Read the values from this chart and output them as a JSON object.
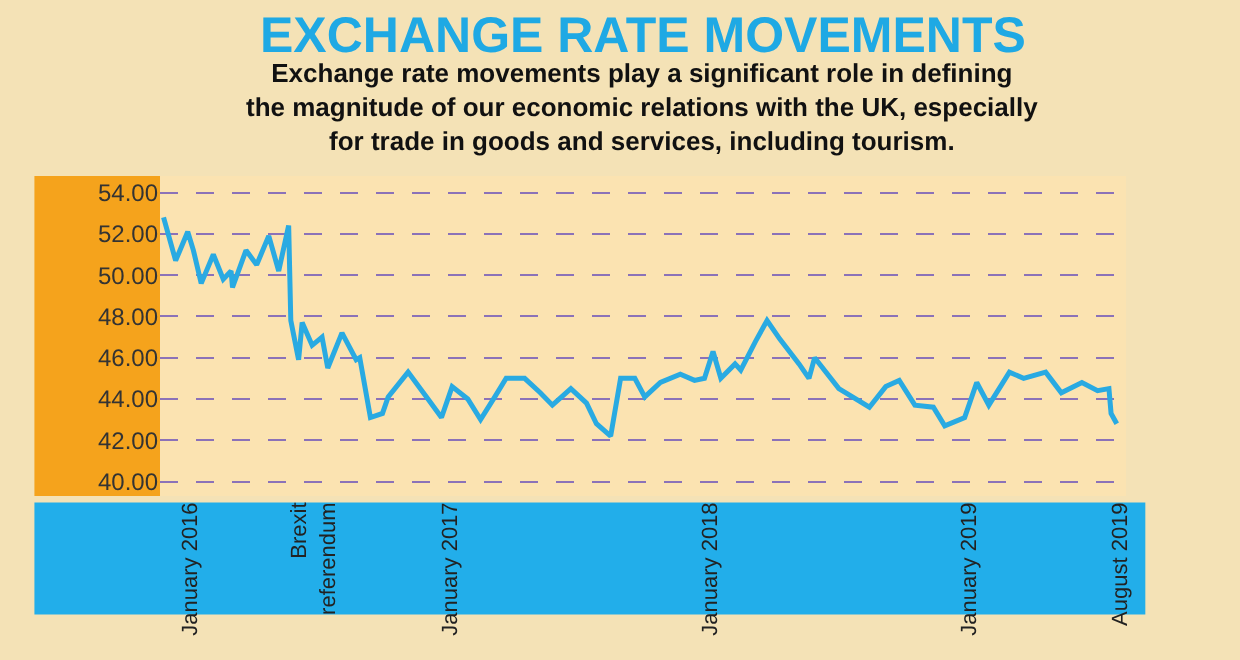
{
  "chart_data": {
    "type": "line",
    "title": "EXCHANGE RATE MOVEMENTS",
    "subtitle": "Exchange rate movements play a significant role in defining\nthe magnitude of our economic relations with the UK, especially\nfor trade in goods and services, including tourism.",
    "x": [
      "2015-11-25",
      "2015-12-12",
      "2015-12-29",
      "2016-01-06",
      "2016-01-17",
      "2016-02-03",
      "2016-02-17",
      "2016-02-28",
      "2016-03-01",
      "2016-03-20",
      "2016-04-04",
      "2016-04-21",
      "2016-05-05",
      "2016-05-19",
      "2016-05-22",
      "2016-06-02",
      "2016-06-07",
      "2016-06-21",
      "2016-07-05",
      "2016-07-13",
      "2016-08-02",
      "2016-08-22",
      "2016-08-27",
      "2016-09-11",
      "2016-09-28",
      "2016-10-06",
      "2016-11-03",
      "2016-12-01",
      "2016-12-20",
      "2017-01-04",
      "2017-01-26",
      "2017-02-13",
      "2017-03-05",
      "2017-03-21",
      "2017-04-16",
      "2017-05-08",
      "2017-05-25",
      "2017-06-20",
      "2017-07-12",
      "2017-07-26",
      "2017-08-15",
      "2017-08-29",
      "2017-09-18",
      "2017-10-02",
      "2017-10-24",
      "2017-11-21",
      "2017-12-11",
      "2017-12-25",
      "2018-01-06",
      "2018-01-17",
      "2018-02-06",
      "2018-02-14",
      "2018-03-07",
      "2018-03-23",
      "2018-04-10",
      "2018-05-07",
      "2018-05-21",
      "2018-05-29",
      "2018-07-02",
      "2018-08-14",
      "2018-09-06",
      "2018-09-25",
      "2018-10-17",
      "2018-11-12",
      "2018-11-28",
      "2018-12-26",
      "2019-01-12",
      "2019-01-29",
      "2019-02-27",
      "2019-03-19",
      "2019-04-19",
      "2019-05-11",
      "2019-06-09",
      "2019-07-01",
      "2019-07-17",
      "2019-07-20",
      "2019-07-28"
    ],
    "series": [
      {
        "color": "#29aae2",
        "values": [
          52.8,
          50.7,
          52.1,
          51.2,
          49.6,
          51.0,
          49.8,
          50.2,
          49.4,
          51.2,
          50.5,
          51.9,
          50.2,
          52.4,
          47.8,
          45.9,
          47.7,
          46.6,
          47.0,
          45.5,
          47.2,
          45.9,
          46.0,
          43.1,
          43.3,
          44.1,
          45.3,
          44.0,
          43.1,
          44.6,
          44.0,
          43.0,
          44.1,
          45.0,
          45.0,
          44.3,
          43.7,
          44.5,
          43.8,
          42.8,
          42.2,
          45.0,
          45.0,
          44.1,
          44.8,
          45.2,
          44.9,
          45.0,
          46.3,
          45.0,
          45.7,
          45.4,
          46.8,
          47.8,
          46.9,
          45.7,
          45.0,
          46.0,
          44.5,
          43.6,
          44.6,
          44.9,
          43.7,
          43.6,
          42.7,
          43.1,
          44.8,
          43.7,
          45.3,
          45.0,
          45.3,
          44.3,
          44.8,
          44.4,
          44.5,
          43.3,
          42.8
        ]
      }
    ],
    "xlim": [
      "2015-11-20",
      "2019-08-10"
    ],
    "xticks": [
      {
        "value": "2016-01-01",
        "label": "January 2016"
      },
      {
        "value": "2016-06-23",
        "label": "Brexit\nreferendum"
      },
      {
        "value": "2017-01-01",
        "label": "January 2017"
      },
      {
        "value": "2018-01-01",
        "label": "January 2018"
      },
      {
        "value": "2019-01-01",
        "label": "January 2019"
      },
      {
        "value": "2019-08-01",
        "label": "August 2019"
      }
    ],
    "ylim": [
      39.3,
      54.8
    ],
    "yticks": [
      {
        "value": 40,
        "label": "40.00"
      },
      {
        "value": 42,
        "label": "42.00"
      },
      {
        "value": 44,
        "label": "44.00"
      },
      {
        "value": 46,
        "label": "46.00"
      },
      {
        "value": 48,
        "label": "48.00"
      },
      {
        "value": 50,
        "label": "50.00"
      },
      {
        "value": 52,
        "label": "52.00"
      },
      {
        "value": 54,
        "label": "54.00"
      }
    ],
    "grid": "y",
    "line_style": "solid",
    "marker": "none"
  }
}
